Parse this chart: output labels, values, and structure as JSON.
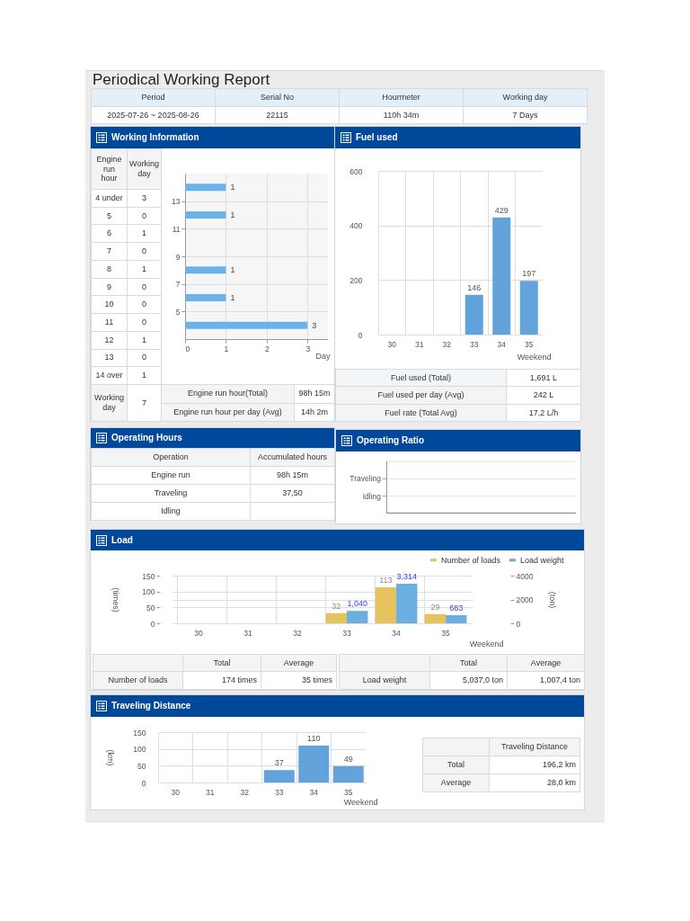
{
  "chart_data": [
    {
      "type": "other",
      "title": "Periodical Working Report",
      "annotations": [
        "Period",
        "Serial No",
        "Hourmeter",
        "Working day",
        "2025-07-26 ~ 2025-08-26",
        "22115",
        "110h 34m",
        "7 Days"
      ]
    },
    {
      "type": "bar",
      "title": "Working Information",
      "orientation": "horizontal",
      "x": [
        4,
        6,
        8,
        12,
        14
      ],
      "values": [
        3,
        1,
        1,
        1,
        1
      ],
      "color": "#6cb2ea",
      "xlim": [
        0,
        3.5
      ],
      "xticks": [
        0,
        1,
        2,
        3
      ],
      "ylim": [
        3,
        15
      ],
      "yticks": [
        5,
        7,
        9,
        11,
        13
      ],
      "xlabel": "Day",
      "grid": true,
      "data_labels": true,
      "annotations": [
        "Engine run hour",
        "Working day",
        "4 under",
        "3",
        "5",
        "0",
        "6",
        "1",
        "7",
        "0",
        "8",
        "1",
        "9",
        "0",
        "10",
        "0",
        "11",
        "0",
        "12",
        "1",
        "13",
        "0",
        "14 over",
        "1",
        "Working day",
        "7",
        "Engine run hour(Total)",
        "98h 15m",
        "Engine run hour per day (Avg)",
        "14h 2m"
      ]
    },
    {
      "type": "bar",
      "title": "Fuel used",
      "categories": [
        "30",
        "31",
        "32",
        "33",
        "34",
        "35"
      ],
      "values": [
        null,
        null,
        null,
        146,
        429,
        197
      ],
      "color": "#62a3dc",
      "ylim": [
        0,
        600
      ],
      "yticks": [
        0,
        200,
        400,
        600
      ],
      "xlabel": "Weekend",
      "grid": true,
      "data_labels": true,
      "annotations": [
        "Fuel used (Total)",
        "1,691 L",
        "Fuel used per day (Avg)",
        "242 L",
        "Fuel rate (Total Avg)",
        "17,2 L/h"
      ]
    },
    {
      "type": "other",
      "title": "Operating Hours",
      "annotations": [
        "Operation",
        "Accumulated hours",
        "Engine run",
        "98h 15m",
        "Traveling",
        "37,50",
        "Idling"
      ]
    },
    {
      "type": "other",
      "title": "Operating Ratio",
      "annotations": [
        "Traveling",
        "Idling"
      ]
    },
    {
      "type": "bar",
      "title": "Load",
      "categories": [
        "30",
        "31",
        "32",
        "33",
        "34",
        "35"
      ],
      "series": [
        {
          "name": "Number of loads",
          "color": "#e6c35c",
          "values": [
            null,
            null,
            null,
            32,
            113,
            29
          ],
          "value_labels": [
            null,
            null,
            null,
            "32",
            "113",
            "29"
          ]
        },
        {
          "name": "Load weight",
          "color": "#6aaee2",
          "axis": "y2",
          "values": [
            null,
            null,
            null,
            1040,
            3314,
            683
          ],
          "value_labels": [
            null,
            null,
            null,
            "1,040",
            "3,314",
            "683"
          ]
        }
      ],
      "xlabel": "Weekend",
      "ylabel": "(times)",
      "y2label": "(ton)",
      "ylim": [
        0,
        150
      ],
      "yticks": [
        0,
        50,
        100,
        150
      ],
      "y2lim": [
        0,
        4000
      ],
      "y2ticks": [
        0,
        2000,
        4000
      ],
      "grid": true,
      "legend": "top right",
      "annotations": [
        "Total",
        "Average",
        "Number of loads",
        "174 times",
        "35 times",
        "Total",
        "Average",
        "Load weight",
        "5,037,0 ton",
        "1,007,4 ton"
      ]
    },
    {
      "type": "bar",
      "title": "Traveling Distance",
      "categories": [
        "30",
        "31",
        "32",
        "33",
        "34",
        "35"
      ],
      "values": [
        null,
        null,
        null,
        37,
        110,
        49
      ],
      "color": "#62a3dc",
      "xlabel": "Weekend",
      "ylabel": "(km)",
      "ylim": [
        0,
        150
      ],
      "yticks": [
        0,
        50,
        100,
        150
      ],
      "grid": true,
      "data_labels": true,
      "annotations": [
        "Traveling Distance",
        "Total",
        "196,2 km",
        "Average",
        "28,0 km"
      ]
    }
  ]
}
